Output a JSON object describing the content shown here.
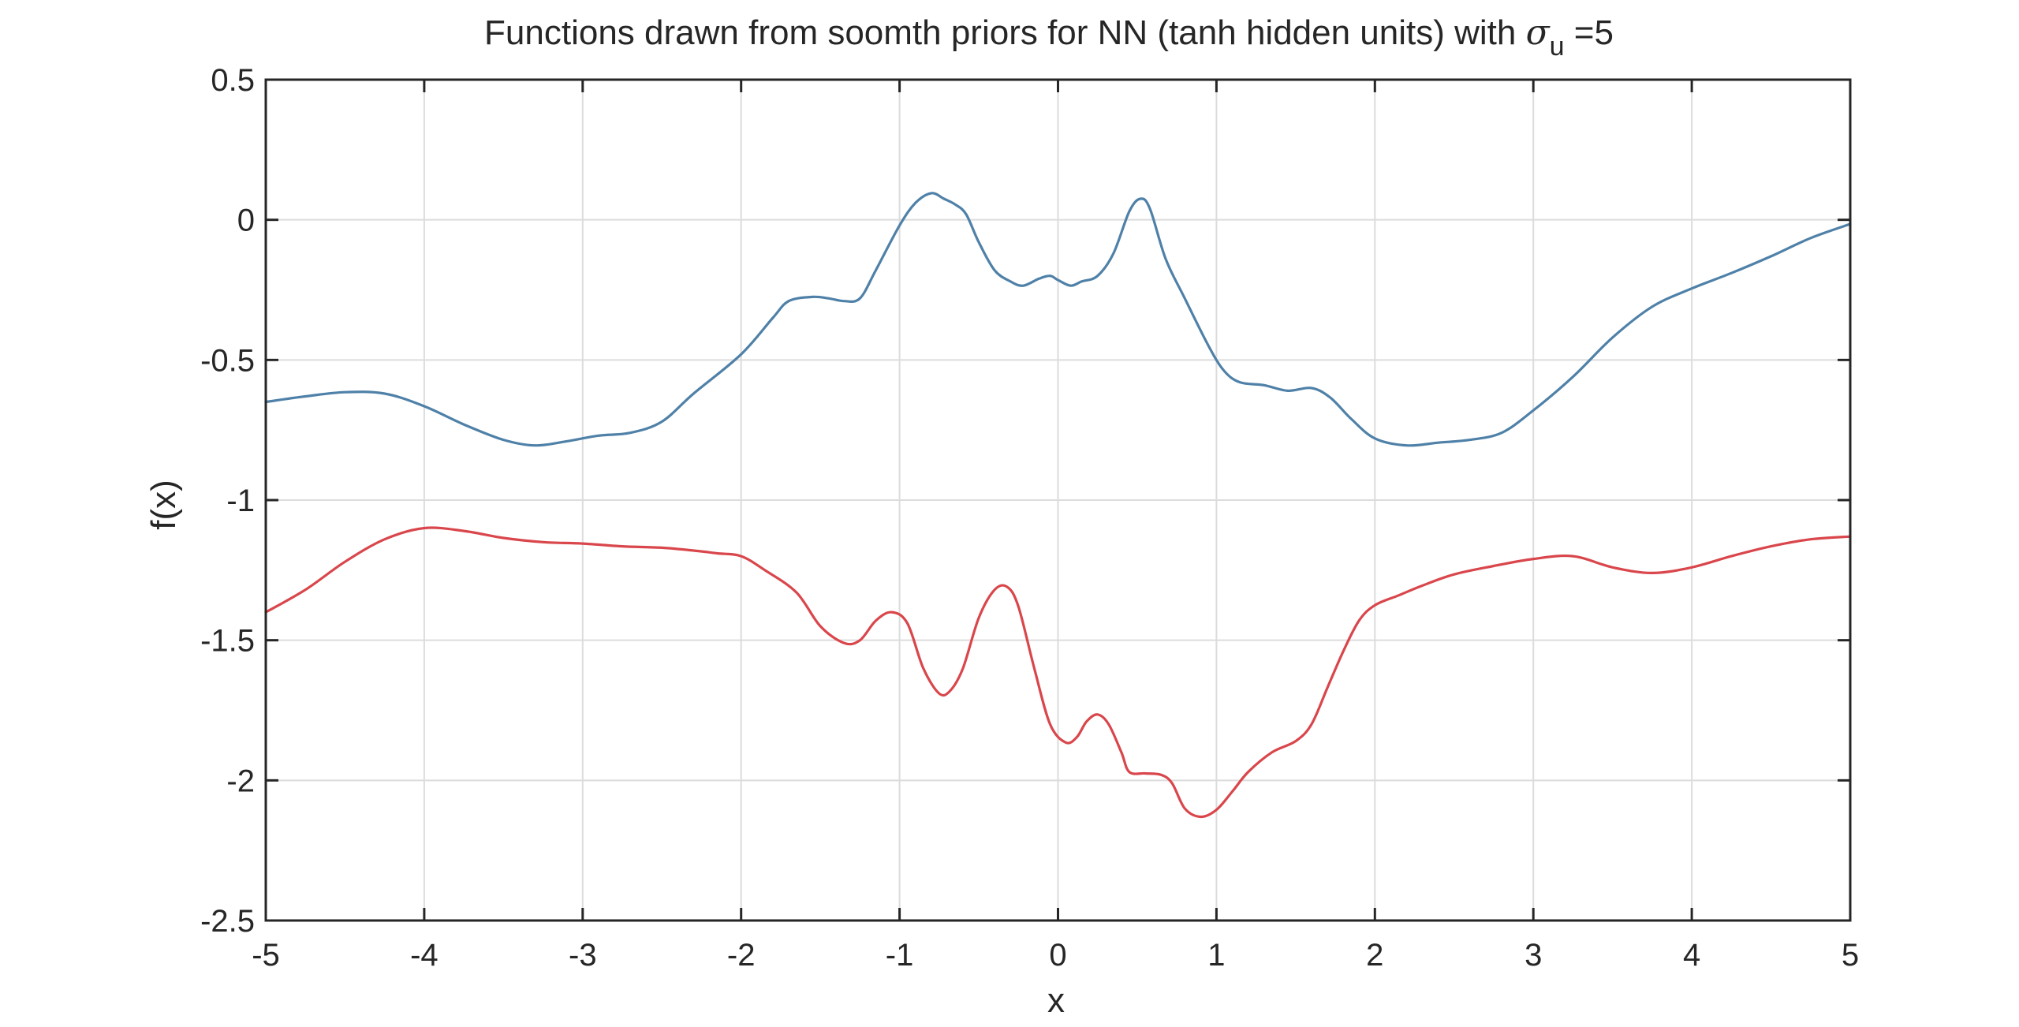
{
  "chart_data": {
    "type": "line",
    "title": {
      "prefix": "Functions drawn from soomth priors for NN (tanh hidden units) with ",
      "symbol": "σ",
      "subscript": "u",
      "suffix": " =5"
    },
    "xlabel": "x",
    "ylabel": "f(x)",
    "xlim": [
      -5,
      5
    ],
    "ylim": [
      -2.5,
      0.5
    ],
    "xticks": [
      -5,
      -4,
      -3,
      -2,
      -1,
      0,
      1,
      2,
      3,
      4,
      5
    ],
    "xtick_labels": [
      "-5",
      "-4",
      "-3",
      "-2",
      "-1",
      "0",
      "1",
      "2",
      "3",
      "4",
      "5"
    ],
    "yticks": [
      -2.5,
      -2,
      -1.5,
      -1,
      -0.5,
      0,
      0.5
    ],
    "ytick_labels": [
      "-2.5",
      "-2",
      "-1.5",
      "-1",
      "-0.5",
      "0",
      "0.5"
    ],
    "grid": true,
    "series": [
      {
        "color": "#4f81a8",
        "points": [
          [
            -5,
            -0.65
          ],
          [
            -4.75,
            -0.63
          ],
          [
            -4.5,
            -0.615
          ],
          [
            -4.25,
            -0.62
          ],
          [
            -4,
            -0.665
          ],
          [
            -3.75,
            -0.73
          ],
          [
            -3.5,
            -0.785
          ],
          [
            -3.3,
            -0.805
          ],
          [
            -3.1,
            -0.79
          ],
          [
            -2.9,
            -0.77
          ],
          [
            -2.7,
            -0.76
          ],
          [
            -2.5,
            -0.72
          ],
          [
            -2.3,
            -0.62
          ],
          [
            -2.0,
            -0.48
          ],
          [
            -1.8,
            -0.35
          ],
          [
            -1.7,
            -0.29
          ],
          [
            -1.55,
            -0.275
          ],
          [
            -1.45,
            -0.28
          ],
          [
            -1.35,
            -0.29
          ],
          [
            -1.25,
            -0.28
          ],
          [
            -1.15,
            -0.18
          ],
          [
            -1.0,
            -0.02
          ],
          [
            -0.9,
            0.06
          ],
          [
            -0.8,
            0.095
          ],
          [
            -0.72,
            0.075
          ],
          [
            -0.65,
            0.055
          ],
          [
            -0.58,
            0.02
          ],
          [
            -0.5,
            -0.08
          ],
          [
            -0.4,
            -0.18
          ],
          [
            -0.3,
            -0.22
          ],
          [
            -0.22,
            -0.235
          ],
          [
            -0.12,
            -0.21
          ],
          [
            -0.05,
            -0.2
          ],
          [
            0.0,
            -0.215
          ],
          [
            0.08,
            -0.235
          ],
          [
            0.15,
            -0.22
          ],
          [
            0.25,
            -0.2
          ],
          [
            0.35,
            -0.12
          ],
          [
            0.45,
            0.03
          ],
          [
            0.52,
            0.075
          ],
          [
            0.58,
            0.04
          ],
          [
            0.68,
            -0.14
          ],
          [
            0.8,
            -0.28
          ],
          [
            0.95,
            -0.45
          ],
          [
            1.05,
            -0.54
          ],
          [
            1.15,
            -0.58
          ],
          [
            1.3,
            -0.59
          ],
          [
            1.45,
            -0.61
          ],
          [
            1.6,
            -0.6
          ],
          [
            1.72,
            -0.635
          ],
          [
            1.85,
            -0.71
          ],
          [
            2.0,
            -0.78
          ],
          [
            2.2,
            -0.805
          ],
          [
            2.4,
            -0.795
          ],
          [
            2.6,
            -0.785
          ],
          [
            2.8,
            -0.76
          ],
          [
            3.0,
            -0.68
          ],
          [
            3.25,
            -0.56
          ],
          [
            3.5,
            -0.42
          ],
          [
            3.75,
            -0.31
          ],
          [
            4.0,
            -0.245
          ],
          [
            4.25,
            -0.19
          ],
          [
            4.5,
            -0.13
          ],
          [
            4.75,
            -0.065
          ],
          [
            5.0,
            -0.015
          ]
        ]
      },
      {
        "color": "#d9464b",
        "points": [
          [
            -5,
            -1.4
          ],
          [
            -4.75,
            -1.32
          ],
          [
            -4.5,
            -1.22
          ],
          [
            -4.25,
            -1.14
          ],
          [
            -4,
            -1.1
          ],
          [
            -3.75,
            -1.11
          ],
          [
            -3.5,
            -1.135
          ],
          [
            -3.25,
            -1.15
          ],
          [
            -3.0,
            -1.155
          ],
          [
            -2.75,
            -1.165
          ],
          [
            -2.5,
            -1.17
          ],
          [
            -2.3,
            -1.18
          ],
          [
            -2.15,
            -1.19
          ],
          [
            -2.0,
            -1.2
          ],
          [
            -1.85,
            -1.25
          ],
          [
            -1.65,
            -1.33
          ],
          [
            -1.5,
            -1.45
          ],
          [
            -1.35,
            -1.51
          ],
          [
            -1.25,
            -1.5
          ],
          [
            -1.15,
            -1.43
          ],
          [
            -1.05,
            -1.4
          ],
          [
            -0.95,
            -1.44
          ],
          [
            -0.85,
            -1.6
          ],
          [
            -0.75,
            -1.69
          ],
          [
            -0.68,
            -1.68
          ],
          [
            -0.6,
            -1.6
          ],
          [
            -0.5,
            -1.42
          ],
          [
            -0.4,
            -1.32
          ],
          [
            -0.32,
            -1.31
          ],
          [
            -0.25,
            -1.38
          ],
          [
            -0.15,
            -1.6
          ],
          [
            -0.05,
            -1.8
          ],
          [
            0.05,
            -1.865
          ],
          [
            0.12,
            -1.845
          ],
          [
            0.18,
            -1.79
          ],
          [
            0.25,
            -1.765
          ],
          [
            0.32,
            -1.8
          ],
          [
            0.4,
            -1.9
          ],
          [
            0.45,
            -1.97
          ],
          [
            0.55,
            -1.975
          ],
          [
            0.65,
            -1.98
          ],
          [
            0.72,
            -2.01
          ],
          [
            0.8,
            -2.1
          ],
          [
            0.9,
            -2.13
          ],
          [
            1.0,
            -2.105
          ],
          [
            1.1,
            -2.04
          ],
          [
            1.2,
            -1.97
          ],
          [
            1.35,
            -1.9
          ],
          [
            1.5,
            -1.86
          ],
          [
            1.6,
            -1.8
          ],
          [
            1.7,
            -1.67
          ],
          [
            1.8,
            -1.54
          ],
          [
            1.9,
            -1.43
          ],
          [
            2.0,
            -1.375
          ],
          [
            2.15,
            -1.34
          ],
          [
            2.3,
            -1.305
          ],
          [
            2.5,
            -1.265
          ],
          [
            2.75,
            -1.235
          ],
          [
            3.0,
            -1.21
          ],
          [
            3.25,
            -1.2
          ],
          [
            3.5,
            -1.24
          ],
          [
            3.75,
            -1.26
          ],
          [
            4.0,
            -1.24
          ],
          [
            4.25,
            -1.2
          ],
          [
            4.5,
            -1.165
          ],
          [
            4.75,
            -1.14
          ],
          [
            5.0,
            -1.13
          ]
        ]
      }
    ]
  }
}
